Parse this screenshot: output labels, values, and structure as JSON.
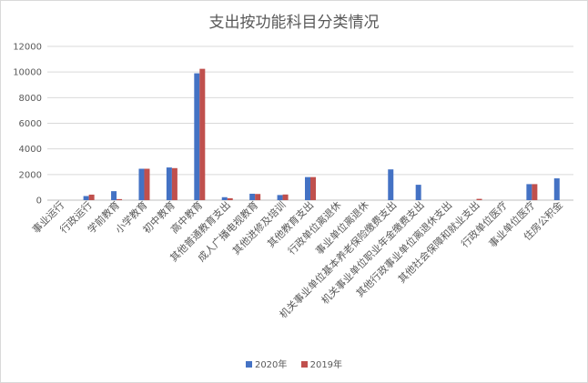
{
  "chart_data": {
    "type": "bar",
    "title": "支出按功能科目分类情况",
    "xlabel": "",
    "ylabel": "",
    "ylim": [
      0,
      12000
    ],
    "yticks": [
      0,
      2000,
      4000,
      6000,
      8000,
      10000,
      12000
    ],
    "grid": true,
    "legend_position": "bottom",
    "categories": [
      "事业运行",
      "行政运行",
      "学前教育",
      "小学教育",
      "初中教育",
      "高中教育",
      "其他普通教育支出",
      "成人广播电视教育",
      "其他进修及培训",
      "其他教育支出",
      "行政单位离退休",
      "事业单位离退休",
      "机关事业单位基本养老保险缴费支出",
      "机关事业单位职业年金缴费支出",
      "其他行政事业单位离退休支出",
      "其他社会保障和就业支出",
      "行政单位医疗",
      "事业单位医疗",
      "住房公积金"
    ],
    "series": [
      {
        "name": "2020年",
        "color": "#4472C4",
        "values": [
          0,
          320,
          700,
          2450,
          2550,
          9900,
          230,
          500,
          400,
          1800,
          0,
          0,
          2400,
          1200,
          0,
          0,
          0,
          1250,
          1700
        ]
      },
      {
        "name": "2019年",
        "color": "#C0504D",
        "values": [
          0,
          430,
          80,
          2450,
          2500,
          10250,
          150,
          480,
          440,
          1800,
          0,
          0,
          0,
          0,
          0,
          100,
          0,
          1250,
          0
        ]
      }
    ]
  }
}
